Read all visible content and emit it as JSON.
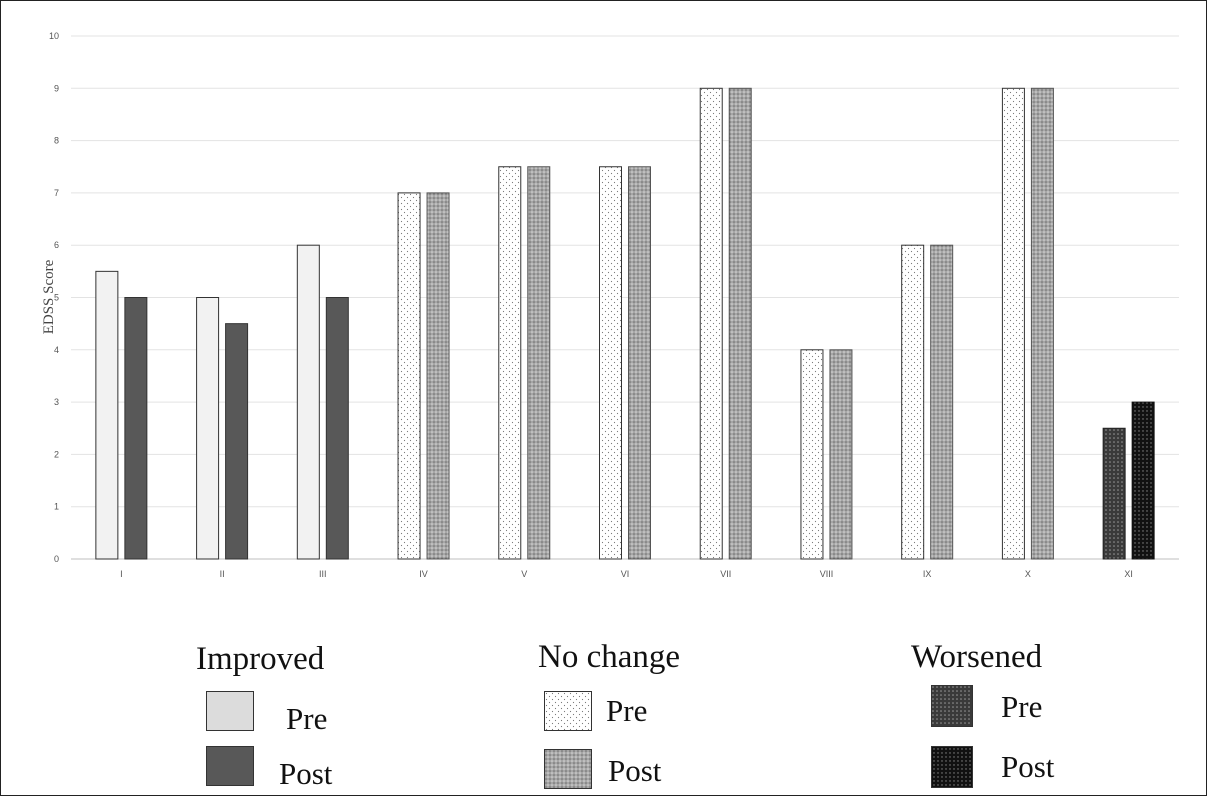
{
  "chart_data": {
    "type": "bar",
    "title": "",
    "xlabel": "",
    "ylabel": "EDSS Score",
    "ylim": [
      0,
      10
    ],
    "yticks": [
      "0",
      "1",
      "2",
      "3",
      "4",
      "5",
      "6",
      "7",
      "8",
      "9",
      "10"
    ],
    "grid": true,
    "categories": [
      "I",
      "II",
      "III",
      "IV",
      "V",
      "VI",
      "VII",
      "VIII",
      "IX",
      "X",
      "XI"
    ],
    "groups": [
      "improved",
      "improved",
      "improved",
      "no_change",
      "no_change",
      "no_change",
      "no_change",
      "no_change",
      "no_change",
      "no_change",
      "worsened"
    ],
    "series": [
      {
        "name": "Pre",
        "values": [
          5.5,
          5,
          6,
          7,
          7.5,
          7.5,
          9,
          4,
          6,
          9,
          2.5
        ]
      },
      {
        "name": "Post",
        "values": [
          5,
          4.5,
          5,
          7,
          7.5,
          7.5,
          9,
          4,
          6,
          9,
          3
        ]
      }
    ],
    "legend": {
      "placement": "bottom",
      "groups": [
        {
          "key": "improved",
          "title": "Improved",
          "items": [
            "Pre",
            "Post"
          ]
        },
        {
          "key": "no_change",
          "title": "No change",
          "items": [
            "Pre",
            "Post"
          ]
        },
        {
          "key": "worsened",
          "title": "Worsened",
          "items": [
            "Pre",
            "Post"
          ]
        }
      ]
    }
  },
  "colors": {
    "improved_pre": "#f2f2f2",
    "improved_post": "#585858",
    "no_change_pre": "#ffffff",
    "no_change_post": "#a6a6a6",
    "worsened_pre": "#6e6e6e",
    "worsened_post": "#2b2b2b",
    "gridline": "#e3e3e3",
    "axis": "#bfbfbf"
  }
}
